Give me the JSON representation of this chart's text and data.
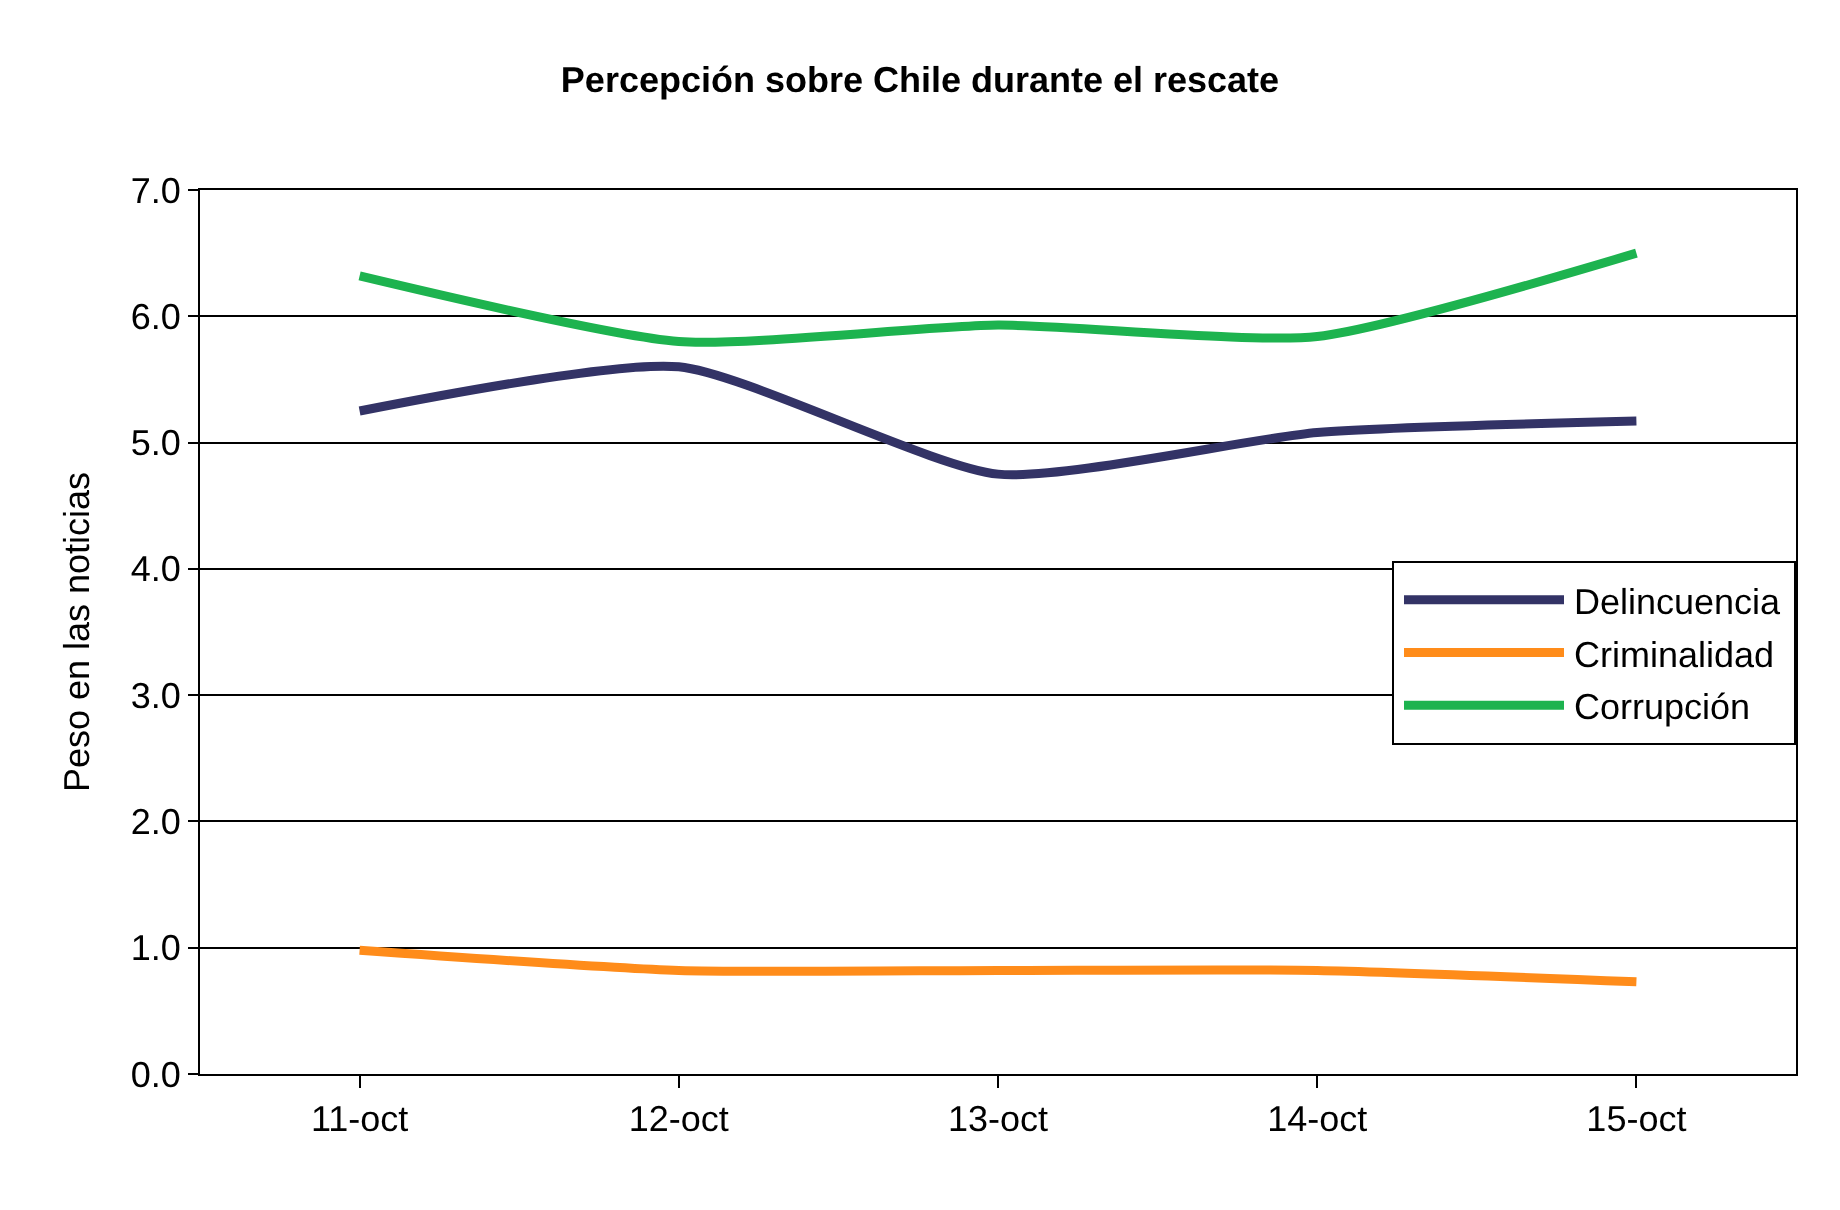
{
  "chart_data": {
    "type": "line",
    "title": "Percepción sobre Chile durante el rescate",
    "ylabel": "Peso en las noticias",
    "categories": [
      "11-oct",
      "12-oct",
      "13-oct",
      "14-oct",
      "15-oct"
    ],
    "series": [
      {
        "name": "Delincuencia",
        "color": "#333366",
        "values": [
          5.25,
          5.6,
          4.75,
          5.08,
          5.17
        ]
      },
      {
        "name": "Criminalidad",
        "color": "#ff8c1a",
        "values": [
          0.98,
          0.82,
          0.82,
          0.82,
          0.73
        ]
      },
      {
        "name": "Corrupción",
        "color": "#1db34f",
        "values": [
          6.32,
          5.8,
          5.93,
          5.84,
          6.5
        ]
      }
    ],
    "ylim": [
      0,
      7
    ],
    "yticks": [
      {
        "value": 0,
        "label": "0.0"
      },
      {
        "value": 1,
        "label": "1.0"
      },
      {
        "value": 2,
        "label": "2.0"
      },
      {
        "value": 3,
        "label": "3.0"
      },
      {
        "value": 4,
        "label": "4.0"
      },
      {
        "value": 5,
        "label": "5.0"
      },
      {
        "value": 6,
        "label": "6.0"
      },
      {
        "value": 7,
        "label": "7.0"
      }
    ],
    "grid": "y",
    "legend": "right",
    "marker": "none",
    "line_style": "solid"
  }
}
